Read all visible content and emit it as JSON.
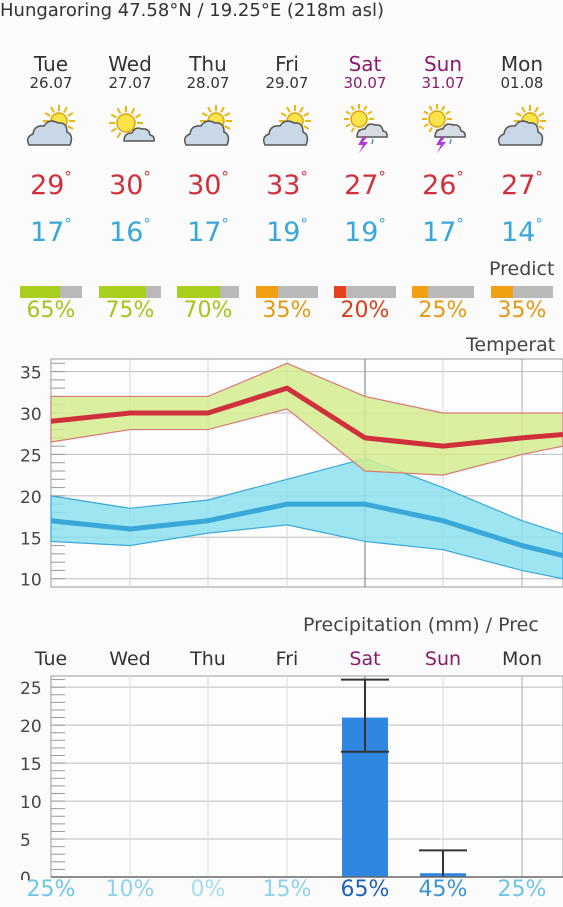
{
  "location": {
    "title": "Hungaroring  47.58°N / 19.25°E (218m asl)"
  },
  "days": [
    {
      "name": "Tue",
      "date": "26.07",
      "weekend": false,
      "icon": "sun-cloud-icon",
      "tmax": "29",
      "tmin": "17",
      "predictability": "65%",
      "pred_value": 65,
      "pred_color": "#a9cf1e",
      "pred_text_color": "#a9c318",
      "precip_chance": "25%",
      "precip_color": "#6ec6e6"
    },
    {
      "name": "Wed",
      "date": "27.07",
      "weekend": false,
      "icon": "sun-small-cloud-icon",
      "tmax": "30",
      "tmin": "16",
      "predictability": "75%",
      "pred_value": 75,
      "pred_color": "#a9cf1e",
      "pred_text_color": "#a9c318",
      "precip_chance": "10%",
      "precip_color": "#8fd3ea"
    },
    {
      "name": "Thu",
      "date": "28.07",
      "weekend": false,
      "icon": "sun-cloud-icon",
      "tmax": "30",
      "tmin": "17",
      "predictability": "70%",
      "pred_value": 70,
      "pred_color": "#a9cf1e",
      "pred_text_color": "#a9c318",
      "precip_chance": "0%",
      "precip_color": "#a6dcf0"
    },
    {
      "name": "Fri",
      "date": "29.07",
      "weekend": false,
      "icon": "sun-cloud-icon",
      "tmax": "33",
      "tmin": "19",
      "predictability": "35%",
      "pred_value": 35,
      "pred_color": "#f0a012",
      "pred_text_color": "#e39a12",
      "precip_chance": "15%",
      "precip_color": "#8fd3ea"
    },
    {
      "name": "Sat",
      "date": "30.07",
      "weekend": true,
      "icon": "sun-thunderstorm-icon",
      "tmax": "27",
      "tmin": "19",
      "predictability": "20%",
      "pred_value": 20,
      "pred_color": "#e8401c",
      "pred_text_color": "#d8401c",
      "precip_chance": "65%",
      "precip_color": "#1c63b8"
    },
    {
      "name": "Sun",
      "date": "31.07",
      "weekend": true,
      "icon": "sun-thunderstorm-icon",
      "tmax": "26",
      "tmin": "17",
      "predictability": "25%",
      "pred_value": 25,
      "pred_color": "#f0a012",
      "pred_text_color": "#e39a12",
      "precip_chance": "45%",
      "precip_color": "#3c93d6"
    },
    {
      "name": "Mon",
      "date": "01.08",
      "weekend": false,
      "icon": "sun-cloud-icon",
      "tmax": "27",
      "tmin": "14",
      "predictability": "35%",
      "pred_value": 35,
      "pred_color": "#f0a012",
      "pred_text_color": "#e39a12",
      "precip_chance": "25%",
      "precip_color": "#6ec6e6"
    }
  ],
  "labels": {
    "predictability": "Predict",
    "temperature": "Temperat",
    "precipitation": "Precipitation (mm) / Prec"
  },
  "colors": {
    "temp_max": "#d0303c",
    "temp_min": "#39a7d8",
    "weekend": "#8a1a6e",
    "precip_bar": "#2f87e2"
  },
  "chart_data": [
    {
      "type": "line",
      "x": [
        "Tue",
        "Wed",
        "Thu",
        "Fri",
        "Sat",
        "Sun",
        "Mon"
      ],
      "ylim": [
        9,
        37
      ],
      "yticks": [
        "35",
        "30",
        "25",
        "20",
        "15",
        "10"
      ],
      "series": [
        {
          "values": [
            29,
            30,
            30,
            33,
            27,
            26,
            27
          ],
          "band_high": [
            32,
            32,
            32,
            36,
            32,
            30,
            30
          ],
          "band_low": [
            26.5,
            28,
            28,
            30.5,
            23,
            22.5,
            25
          ]
        },
        {
          "values": [
            17,
            16,
            17,
            19,
            19,
            17,
            14
          ],
          "band_high": [
            20,
            18.5,
            19.5,
            22,
            24.5,
            21,
            17
          ],
          "band_low": [
            14.5,
            14,
            15.5,
            16.5,
            14.5,
            13.5,
            11
          ]
        }
      ]
    },
    {
      "type": "bar",
      "categories": [
        "Tue",
        "Wed",
        "Thu",
        "Fri",
        "Sat",
        "Sun",
        "Mon"
      ],
      "values": [
        0,
        0,
        0,
        0,
        21,
        0.5,
        0
      ],
      "error_high": [
        0,
        0,
        0,
        0,
        26,
        3.5,
        0
      ],
      "error_low": [
        0,
        0,
        0,
        0,
        16.5,
        0,
        0
      ],
      "ylim": [
        0,
        27
      ],
      "yticks": [
        "25",
        "20",
        "15",
        "10",
        "5",
        "0"
      ]
    }
  ]
}
